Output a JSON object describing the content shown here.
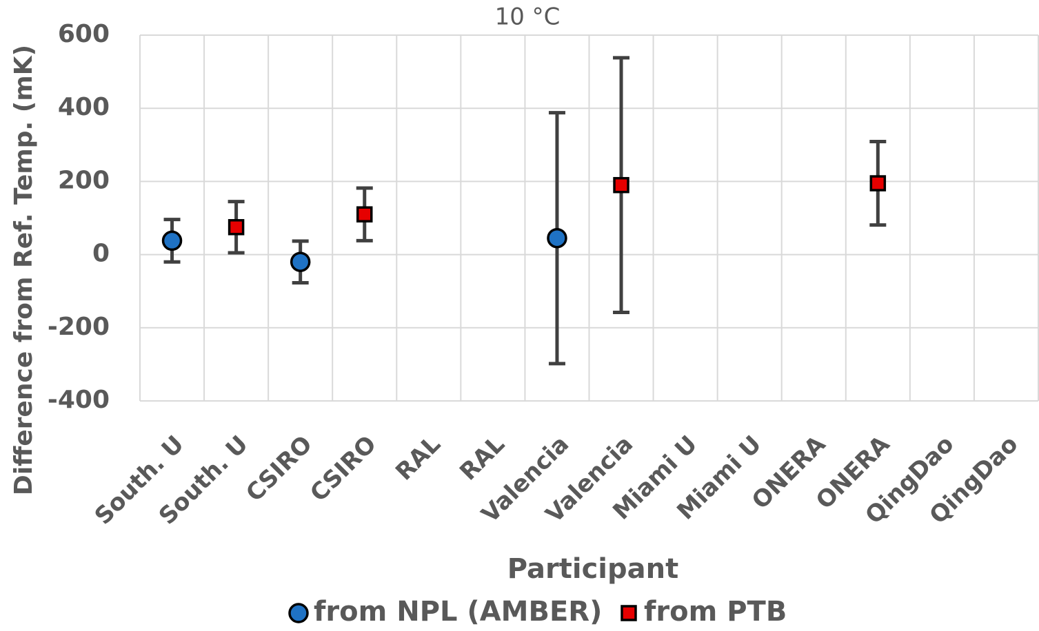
{
  "chart_data": {
    "type": "errorbar-scatter",
    "title": "10 °C",
    "x_label": "Participant",
    "y_label": "Difference from Ref. Temp. (mK)",
    "categories": [
      "South. U",
      "South. U",
      "CSIRO",
      "CSIRO",
      "RAL",
      "RAL",
      "Valencia",
      "Valencia",
      "Miami U",
      "Miami U",
      "ONERA",
      "ONERA",
      "QingDao",
      "QingDao"
    ],
    "series": [
      {
        "name": "from NPL (AMBER)",
        "color": "#1f72c4",
        "marker": "circle",
        "values": [
          38,
          null,
          -20,
          null,
          null,
          null,
          45,
          null,
          null,
          null,
          null,
          null,
          null,
          null
        ],
        "errors": [
          58,
          null,
          57,
          null,
          null,
          null,
          343,
          null,
          null,
          null,
          null,
          null,
          null,
          null
        ]
      },
      {
        "name": "from PTB",
        "color": "#e60000",
        "marker": "square",
        "values": [
          null,
          75,
          null,
          110,
          null,
          null,
          null,
          190,
          null,
          null,
          null,
          195,
          null,
          null
        ],
        "errors": [
          null,
          70,
          null,
          72,
          null,
          null,
          null,
          348,
          null,
          null,
          null,
          114,
          null,
          null
        ]
      }
    ],
    "ylim": [
      -400,
      600
    ],
    "yticks": [
      -400,
      -200,
      0,
      200,
      400,
      600
    ],
    "grid": true
  }
}
